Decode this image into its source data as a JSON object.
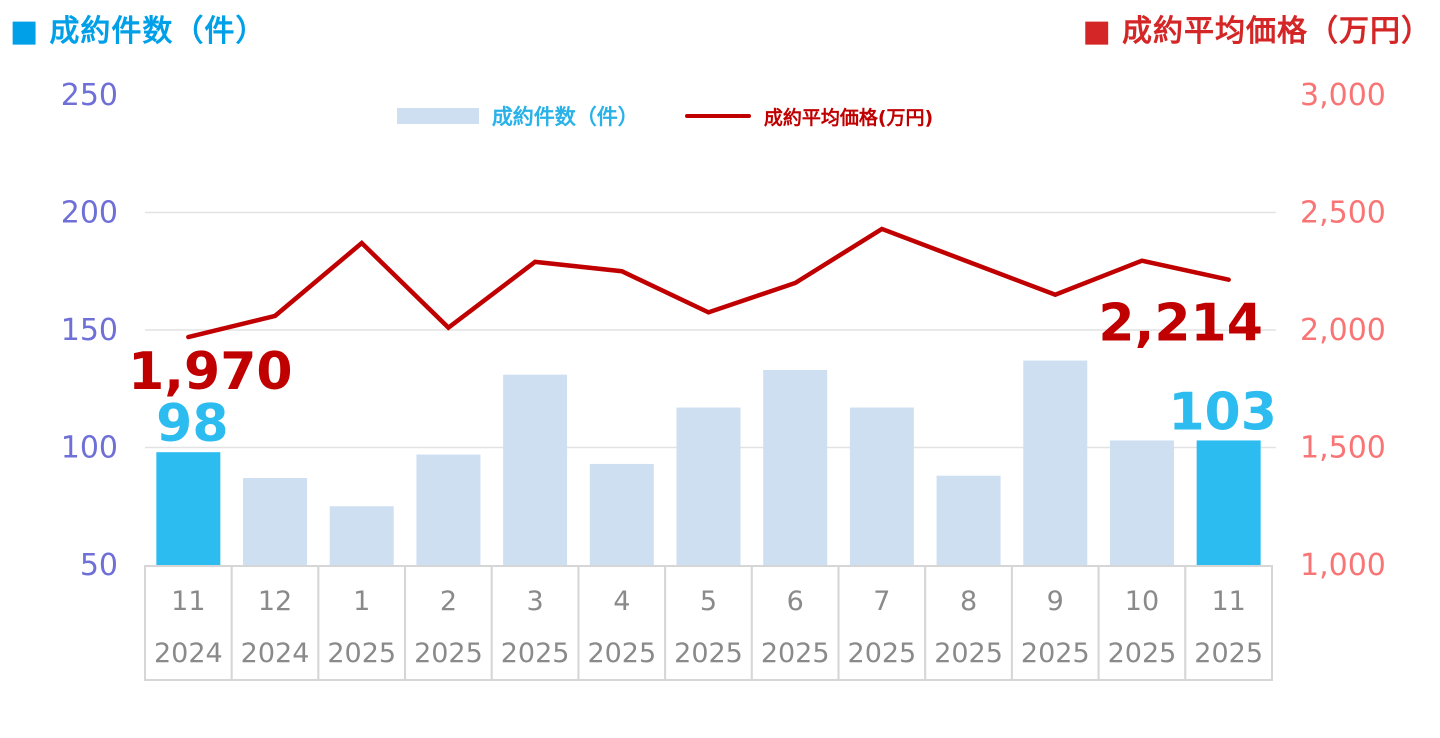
{
  "header": {
    "left_marker": "■",
    "left_title": "成約件数（件）",
    "right_marker": "■",
    "right_title": "成約平均価格（万円）"
  },
  "legend": {
    "bars_label": "成約件数（件）",
    "line_label": "成約平均価格(万円)"
  },
  "chart_data": {
    "type": "bar+line",
    "categories_month": [
      "11",
      "12",
      "1",
      "2",
      "3",
      "4",
      "5",
      "6",
      "7",
      "8",
      "9",
      "10",
      "11"
    ],
    "categories_year": [
      "2024",
      "2024",
      "2025",
      "2025",
      "2025",
      "2025",
      "2025",
      "2025",
      "2025",
      "2025",
      "2025",
      "2025",
      "2025"
    ],
    "series": [
      {
        "name": "成約件数（件）",
        "type": "bar",
        "axis": "left",
        "values": [
          98,
          87,
          75,
          97,
          131,
          93,
          117,
          133,
          117,
          88,
          137,
          103,
          103
        ],
        "color": "#CEDFF2",
        "highlight_color": "#2CBCF0",
        "highlight_indices": [
          0,
          12
        ]
      },
      {
        "name": "成約平均価格(万円)",
        "type": "line",
        "axis": "right",
        "values": [
          1970,
          2060,
          2370,
          2010,
          2290,
          2250,
          2075,
          2200,
          2430,
          2290,
          2150,
          2295,
          2214
        ],
        "color": "#C00000"
      }
    ],
    "left_axis": {
      "ticks": [
        50,
        100,
        150,
        200,
        250
      ],
      "range": [
        50,
        250
      ],
      "color": "#6F6FD8"
    },
    "right_axis": {
      "tick_labels": [
        "1,000",
        "1,500",
        "2,000",
        "2,500",
        "3,000"
      ],
      "tick_values": [
        1000,
        1500,
        2000,
        2500,
        3000
      ],
      "range": [
        1000,
        3000
      ],
      "color": "#F97575"
    },
    "gridlines": [
      100,
      150,
      200
    ],
    "x_label_color": "#8A8A8A",
    "data_labels": [
      {
        "text": "1,970",
        "series": "line",
        "index": 0,
        "color": "#C00000"
      },
      {
        "text": "98",
        "series": "bar",
        "index": 0,
        "color": "#2CBCF0"
      },
      {
        "text": "2,214",
        "series": "line",
        "index": 12,
        "color": "#C00000"
      },
      {
        "text": "103",
        "series": "bar",
        "index": 12,
        "color": "#2CBCF0"
      }
    ]
  }
}
